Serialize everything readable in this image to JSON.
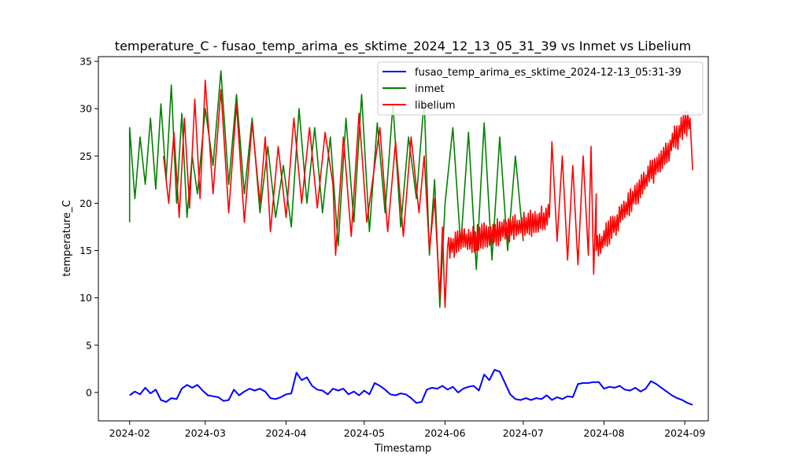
{
  "chart_data": {
    "type": "line",
    "title": "temperature_C - fusao_temp_arima_es_sktime_2024_12_13_05_31_39 vs Inmet vs Libelium",
    "xlabel": "Timestamp",
    "ylabel": "temperature_C",
    "xlim": [
      "2024-01-20",
      "2024-09-10"
    ],
    "ylim": [
      -3,
      35.5
    ],
    "x_ticks": [
      "2024-02",
      "2024-03",
      "2024-04",
      "2024-05",
      "2024-06",
      "2024-07",
      "2024-08",
      "2024-09"
    ],
    "y_ticks": [
      0,
      5,
      10,
      15,
      20,
      25,
      30,
      35
    ],
    "grid": false,
    "legend_position": "top-right",
    "series": [
      {
        "name": "fusao_temp_arima_es_sktime_2024-12-13_05:31-39",
        "color": "#0000ff",
        "style": "smooth",
        "points": [
          [
            "2024-02-01",
            -0.3
          ],
          [
            "2024-02-03",
            0.1
          ],
          [
            "2024-02-05",
            -0.2
          ],
          [
            "2024-02-07",
            0.5
          ],
          [
            "2024-02-09",
            -0.1
          ],
          [
            "2024-02-11",
            0.3
          ],
          [
            "2024-02-13",
            -0.8
          ],
          [
            "2024-02-15",
            -1.0
          ],
          [
            "2024-02-17",
            -0.6
          ],
          [
            "2024-02-19",
            -0.7
          ],
          [
            "2024-02-21",
            0.4
          ],
          [
            "2024-02-23",
            0.8
          ],
          [
            "2024-02-25",
            0.5
          ],
          [
            "2024-02-27",
            0.8
          ],
          [
            "2024-02-29",
            0.2
          ],
          [
            "2024-03-02",
            -0.3
          ],
          [
            "2024-03-04",
            -0.4
          ],
          [
            "2024-03-06",
            -0.5
          ],
          [
            "2024-03-08",
            -0.9
          ],
          [
            "2024-03-10",
            -0.8
          ],
          [
            "2024-03-12",
            0.3
          ],
          [
            "2024-03-14",
            -0.3
          ],
          [
            "2024-03-16",
            0.1
          ],
          [
            "2024-03-18",
            0.4
          ],
          [
            "2024-03-20",
            0.2
          ],
          [
            "2024-03-22",
            0.4
          ],
          [
            "2024-03-24",
            0.1
          ],
          [
            "2024-03-26",
            -0.6
          ],
          [
            "2024-03-28",
            -0.7
          ],
          [
            "2024-03-30",
            -0.5
          ],
          [
            "2024-04-01",
            -0.2
          ],
          [
            "2024-04-03",
            -0.1
          ],
          [
            "2024-04-05",
            2.1
          ],
          [
            "2024-04-07",
            1.3
          ],
          [
            "2024-04-09",
            1.6
          ],
          [
            "2024-04-11",
            0.7
          ],
          [
            "2024-04-13",
            0.3
          ],
          [
            "2024-04-15",
            0.2
          ],
          [
            "2024-04-17",
            -0.2
          ],
          [
            "2024-04-19",
            0.4
          ],
          [
            "2024-04-21",
            0.2
          ],
          [
            "2024-04-23",
            0.4
          ],
          [
            "2024-04-25",
            -0.2
          ],
          [
            "2024-04-27",
            0.1
          ],
          [
            "2024-04-29",
            -0.3
          ],
          [
            "2024-05-01",
            0.2
          ],
          [
            "2024-05-03",
            -0.2
          ],
          [
            "2024-05-05",
            1.0
          ],
          [
            "2024-05-07",
            0.7
          ],
          [
            "2024-05-09",
            0.3
          ],
          [
            "2024-05-11",
            -0.2
          ],
          [
            "2024-05-13",
            -0.3
          ],
          [
            "2024-05-15",
            -0.1
          ],
          [
            "2024-05-17",
            -0.2
          ],
          [
            "2024-05-19",
            -0.6
          ],
          [
            "2024-05-21",
            -1.1
          ],
          [
            "2024-05-23",
            -1.0
          ],
          [
            "2024-05-25",
            0.3
          ],
          [
            "2024-05-27",
            0.5
          ],
          [
            "2024-05-29",
            0.4
          ],
          [
            "2024-05-31",
            0.7
          ],
          [
            "2024-06-02",
            0.3
          ],
          [
            "2024-06-04",
            0.6
          ],
          [
            "2024-06-06",
            0.0
          ],
          [
            "2024-06-08",
            0.4
          ],
          [
            "2024-06-10",
            0.6
          ],
          [
            "2024-06-12",
            0.7
          ],
          [
            "2024-06-14",
            0.2
          ],
          [
            "2024-06-16",
            1.9
          ],
          [
            "2024-06-18",
            1.3
          ],
          [
            "2024-06-20",
            2.4
          ],
          [
            "2024-06-22",
            2.2
          ],
          [
            "2024-06-24",
            1.0
          ],
          [
            "2024-06-26",
            -0.2
          ],
          [
            "2024-06-28",
            -0.7
          ],
          [
            "2024-06-30",
            -0.8
          ],
          [
            "2024-07-02",
            -0.6
          ],
          [
            "2024-07-04",
            -0.8
          ],
          [
            "2024-07-06",
            -0.6
          ],
          [
            "2024-07-08",
            -0.7
          ],
          [
            "2024-07-10",
            -0.3
          ],
          [
            "2024-07-12",
            -0.8
          ],
          [
            "2024-07-14",
            -0.5
          ],
          [
            "2024-07-16",
            -0.7
          ],
          [
            "2024-07-18",
            -0.4
          ],
          [
            "2024-07-20",
            -0.5
          ],
          [
            "2024-07-22",
            0.9
          ],
          [
            "2024-07-24",
            1.0
          ],
          [
            "2024-07-26",
            1.0
          ],
          [
            "2024-07-28",
            1.1
          ],
          [
            "2024-07-30",
            1.1
          ],
          [
            "2024-08-01",
            0.4
          ],
          [
            "2024-08-03",
            0.6
          ],
          [
            "2024-08-05",
            0.5
          ],
          [
            "2024-08-07",
            0.7
          ],
          [
            "2024-08-09",
            0.3
          ],
          [
            "2024-08-11",
            0.2
          ],
          [
            "2024-08-13",
            0.5
          ],
          [
            "2024-08-15",
            0.1
          ],
          [
            "2024-08-17",
            0.4
          ],
          [
            "2024-08-19",
            1.2
          ],
          [
            "2024-08-21",
            0.9
          ],
          [
            "2024-08-23",
            0.5
          ],
          [
            "2024-08-25",
            0.1
          ],
          [
            "2024-08-27",
            -0.3
          ],
          [
            "2024-08-29",
            -0.6
          ],
          [
            "2024-08-31",
            -0.8
          ],
          [
            "2024-09-02",
            -1.1
          ],
          [
            "2024-09-04",
            -1.3
          ]
        ]
      },
      {
        "name": "inmet",
        "color": "#008000",
        "style": "zigzag",
        "points": [
          [
            "2024-02-01",
            18.0
          ],
          [
            "2024-02-01",
            28.0
          ],
          [
            "2024-02-03",
            20.5
          ],
          [
            "2024-02-05",
            27.0
          ],
          [
            "2024-02-07",
            22.0
          ],
          [
            "2024-02-09",
            29.0
          ],
          [
            "2024-02-11",
            21.5
          ],
          [
            "2024-02-13",
            30.5
          ],
          [
            "2024-02-15",
            22.5
          ],
          [
            "2024-02-17",
            32.5
          ],
          [
            "2024-02-19",
            20.0
          ],
          [
            "2024-02-21",
            29.5
          ],
          [
            "2024-02-23",
            18.5
          ],
          [
            "2024-02-25",
            25.0
          ],
          [
            "2024-02-27",
            21.0
          ],
          [
            "2024-03-01",
            30.0
          ],
          [
            "2024-03-04",
            24.0
          ],
          [
            "2024-03-07",
            34.0
          ],
          [
            "2024-03-10",
            22.0
          ],
          [
            "2024-03-13",
            31.5
          ],
          [
            "2024-03-16",
            21.0
          ],
          [
            "2024-03-19",
            29.0
          ],
          [
            "2024-03-22",
            19.0
          ],
          [
            "2024-03-25",
            26.0
          ],
          [
            "2024-03-28",
            18.5
          ],
          [
            "2024-03-31",
            24.0
          ],
          [
            "2024-04-03",
            17.5
          ],
          [
            "2024-04-06",
            30.0
          ],
          [
            "2024-04-09",
            20.0
          ],
          [
            "2024-04-12",
            28.0
          ],
          [
            "2024-04-15",
            19.0
          ],
          [
            "2024-04-18",
            27.0
          ],
          [
            "2024-04-21",
            15.5
          ],
          [
            "2024-04-24",
            29.0
          ],
          [
            "2024-04-27",
            18.0
          ],
          [
            "2024-04-30",
            31.5
          ],
          [
            "2024-05-03",
            17.0
          ],
          [
            "2024-05-06",
            28.5
          ],
          [
            "2024-05-09",
            19.0
          ],
          [
            "2024-05-12",
            30.5
          ],
          [
            "2024-05-15",
            17.5
          ],
          [
            "2024-05-18",
            27.0
          ],
          [
            "2024-05-21",
            20.5
          ],
          [
            "2024-05-24",
            31.0
          ],
          [
            "2024-05-26",
            14.5
          ],
          [
            "2024-05-28",
            22.5
          ],
          [
            "2024-05-30",
            9.0
          ],
          [
            "2024-06-01",
            20.0
          ],
          [
            "2024-06-04",
            28.0
          ],
          [
            "2024-06-07",
            15.5
          ],
          [
            "2024-06-10",
            27.5
          ],
          [
            "2024-06-13",
            13.0
          ],
          [
            "2024-06-16",
            28.5
          ],
          [
            "2024-06-19",
            14.0
          ],
          [
            "2024-06-22",
            27.0
          ],
          [
            "2024-06-25",
            15.0
          ],
          [
            "2024-06-28",
            25.0
          ],
          [
            "2024-07-01",
            16.0
          ]
        ]
      },
      {
        "name": "libelium",
        "color": "#ff0000",
        "style": "zigzag",
        "points": [
          [
            "2024-02-14",
            25.0
          ],
          [
            "2024-02-16",
            20.0
          ],
          [
            "2024-02-18",
            27.5
          ],
          [
            "2024-02-20",
            18.5
          ],
          [
            "2024-02-22",
            29.0
          ],
          [
            "2024-02-24",
            19.5
          ],
          [
            "2024-02-26",
            31.0
          ],
          [
            "2024-02-28",
            20.5
          ],
          [
            "2024-03-01",
            33.0
          ],
          [
            "2024-03-04",
            21.0
          ],
          [
            "2024-03-07",
            32.0
          ],
          [
            "2024-03-10",
            19.0
          ],
          [
            "2024-03-13",
            30.5
          ],
          [
            "2024-03-16",
            18.0
          ],
          [
            "2024-03-19",
            28.5
          ],
          [
            "2024-03-22",
            20.0
          ],
          [
            "2024-03-24",
            27.0
          ],
          [
            "2024-03-26",
            17.0
          ],
          [
            "2024-03-29",
            26.0
          ],
          [
            "2024-04-01",
            18.5
          ],
          [
            "2024-04-04",
            29.0
          ],
          [
            "2024-04-07",
            20.0
          ],
          [
            "2024-04-10",
            28.0
          ],
          [
            "2024-04-13",
            19.5
          ],
          [
            "2024-04-16",
            27.5
          ],
          [
            "2024-04-19",
            22.0
          ],
          [
            "2024-04-20",
            14.5
          ],
          [
            "2024-04-23",
            27.0
          ],
          [
            "2024-04-26",
            16.5
          ],
          [
            "2024-04-29",
            29.5
          ],
          [
            "2024-05-02",
            18.0
          ],
          [
            "2024-05-04",
            22.0
          ],
          [
            "2024-05-07",
            28.0
          ],
          [
            "2024-05-10",
            17.0
          ],
          [
            "2024-05-13",
            26.5
          ],
          [
            "2024-05-16",
            16.5
          ],
          [
            "2024-05-19",
            27.0
          ],
          [
            "2024-05-22",
            19.0
          ],
          [
            "2024-05-24",
            25.0
          ],
          [
            "2024-05-26",
            15.0
          ],
          [
            "2024-05-28",
            20.5
          ],
          [
            "2024-05-30",
            10.0
          ],
          [
            "2024-05-31",
            17.5
          ],
          [
            "2024-06-01",
            9.0
          ],
          [
            "2024-06-02",
            15.5
          ],
          [
            "2024-07-11",
            18.5
          ],
          [
            "2024-07-12",
            26.5
          ],
          [
            "2024-07-14",
            16.0
          ],
          [
            "2024-07-16",
            25.0
          ],
          [
            "2024-07-18",
            14.0
          ],
          [
            "2024-07-20",
            24.0
          ],
          [
            "2024-07-22",
            13.5
          ],
          [
            "2024-07-24",
            25.0
          ],
          [
            "2024-07-26",
            14.5
          ],
          [
            "2024-07-27",
            26.0
          ],
          [
            "2024-07-28",
            12.5
          ],
          [
            "2024-07-29",
            21.0
          ],
          [
            "2024-07-29",
            15.0
          ],
          [
            "2024-09-03",
            29.0
          ],
          [
            "2024-09-04",
            23.5
          ]
        ]
      }
    ]
  }
}
